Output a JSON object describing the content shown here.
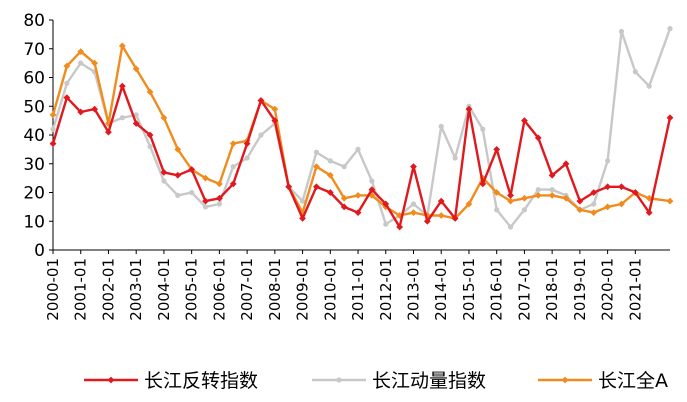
{
  "chart_data": {
    "type": "line",
    "title": "",
    "xlabel": "",
    "ylabel": "",
    "ylim": [
      0,
      80
    ],
    "yticks": [
      0,
      10,
      20,
      30,
      40,
      50,
      60,
      70,
      80
    ],
    "grid": false,
    "legend_position": "bottom",
    "x_tick_labels": [
      "2000-01",
      "2001-01",
      "2002-01",
      "2003-01",
      "2004-01",
      "2005-01",
      "2006-01",
      "2007-01",
      "2008-01",
      "2009-01",
      "2010-01",
      "2011-01",
      "2012-01",
      "2013-01",
      "2014-01",
      "2015-01",
      "2016-01",
      "2017-01",
      "2018-01",
      "2019-01",
      "2020-01",
      "2021-01"
    ],
    "x_start": 2000.0,
    "x_end": 2022.25,
    "series": [
      {
        "name": "长江动量指数",
        "color": "#c8c8c8",
        "marker": "circle",
        "points": [
          [
            2000.0,
            42
          ],
          [
            2000.5,
            58
          ],
          [
            2001.0,
            65
          ],
          [
            2001.5,
            62
          ],
          [
            2002.0,
            44
          ],
          [
            2002.5,
            46
          ],
          [
            2003.0,
            47
          ],
          [
            2003.5,
            36
          ],
          [
            2004.0,
            24
          ],
          [
            2004.5,
            19
          ],
          [
            2005.0,
            20
          ],
          [
            2005.5,
            15
          ],
          [
            2006.0,
            16
          ],
          [
            2006.5,
            29
          ],
          [
            2007.0,
            32
          ],
          [
            2007.5,
            40
          ],
          [
            2008.0,
            44
          ],
          [
            2008.5,
            22
          ],
          [
            2009.0,
            17
          ],
          [
            2009.5,
            34
          ],
          [
            2010.0,
            31
          ],
          [
            2010.5,
            29
          ],
          [
            2011.0,
            35
          ],
          [
            2011.5,
            24
          ],
          [
            2012.0,
            9
          ],
          [
            2012.5,
            12
          ],
          [
            2013.0,
            16
          ],
          [
            2013.5,
            12
          ],
          [
            2014.0,
            43
          ],
          [
            2014.5,
            32
          ],
          [
            2015.0,
            50
          ],
          [
            2015.5,
            42
          ],
          [
            2016.0,
            14
          ],
          [
            2016.5,
            8
          ],
          [
            2017.0,
            14
          ],
          [
            2017.5,
            21
          ],
          [
            2018.0,
            21
          ],
          [
            2018.5,
            19
          ],
          [
            2019.0,
            14
          ],
          [
            2019.5,
            16
          ],
          [
            2020.0,
            31
          ],
          [
            2020.5,
            76
          ],
          [
            2021.0,
            62
          ],
          [
            2021.5,
            57
          ],
          [
            2022.25,
            77
          ]
        ]
      },
      {
        "name": "长江全A",
        "color": "#f08c1e",
        "marker": "diamond",
        "points": [
          [
            2000.0,
            47
          ],
          [
            2000.5,
            64
          ],
          [
            2001.0,
            69
          ],
          [
            2001.5,
            65
          ],
          [
            2002.0,
            44
          ],
          [
            2002.5,
            71
          ],
          [
            2003.0,
            63
          ],
          [
            2003.5,
            55
          ],
          [
            2004.0,
            46
          ],
          [
            2004.5,
            35
          ],
          [
            2005.0,
            28
          ],
          [
            2005.5,
            25
          ],
          [
            2006.0,
            23
          ],
          [
            2006.5,
            37
          ],
          [
            2007.0,
            38
          ],
          [
            2007.5,
            52
          ],
          [
            2008.0,
            49
          ],
          [
            2008.5,
            22
          ],
          [
            2009.0,
            13
          ],
          [
            2009.5,
            29
          ],
          [
            2010.0,
            26
          ],
          [
            2010.5,
            18
          ],
          [
            2011.0,
            19
          ],
          [
            2011.5,
            19
          ],
          [
            2012.0,
            15
          ],
          [
            2012.5,
            12
          ],
          [
            2013.0,
            13
          ],
          [
            2013.5,
            12
          ],
          [
            2014.0,
            12
          ],
          [
            2014.5,
            11
          ],
          [
            2015.0,
            16
          ],
          [
            2015.5,
            25
          ],
          [
            2016.0,
            20
          ],
          [
            2016.5,
            17
          ],
          [
            2017.0,
            18
          ],
          [
            2017.5,
            19
          ],
          [
            2018.0,
            19
          ],
          [
            2018.5,
            18
          ],
          [
            2019.0,
            14
          ],
          [
            2019.5,
            13
          ],
          [
            2020.0,
            15
          ],
          [
            2020.5,
            16
          ],
          [
            2021.0,
            20
          ],
          [
            2021.5,
            18
          ],
          [
            2022.25,
            17
          ]
        ]
      },
      {
        "name": "长江反转指数",
        "color": "#e0191e",
        "marker": "diamond",
        "points": [
          [
            2000.0,
            37
          ],
          [
            2000.5,
            53
          ],
          [
            2001.0,
            48
          ],
          [
            2001.5,
            49
          ],
          [
            2002.0,
            41
          ],
          [
            2002.5,
            57
          ],
          [
            2003.0,
            44
          ],
          [
            2003.5,
            40
          ],
          [
            2004.0,
            27
          ],
          [
            2004.5,
            26
          ],
          [
            2005.0,
            28
          ],
          [
            2005.5,
            17
          ],
          [
            2006.0,
            18
          ],
          [
            2006.5,
            23
          ],
          [
            2007.0,
            37
          ],
          [
            2007.5,
            52
          ],
          [
            2008.0,
            45
          ],
          [
            2008.5,
            22
          ],
          [
            2009.0,
            11
          ],
          [
            2009.5,
            22
          ],
          [
            2010.0,
            20
          ],
          [
            2010.5,
            15
          ],
          [
            2011.0,
            13
          ],
          [
            2011.5,
            21
          ],
          [
            2012.0,
            16
          ],
          [
            2012.5,
            8
          ],
          [
            2013.0,
            29
          ],
          [
            2013.5,
            10
          ],
          [
            2014.0,
            17
          ],
          [
            2014.5,
            11
          ],
          [
            2015.0,
            49
          ],
          [
            2015.5,
            23
          ],
          [
            2016.0,
            35
          ],
          [
            2016.5,
            19
          ],
          [
            2017.0,
            45
          ],
          [
            2017.5,
            39
          ],
          [
            2018.0,
            26
          ],
          [
            2018.5,
            30
          ],
          [
            2019.0,
            17
          ],
          [
            2019.5,
            20
          ],
          [
            2020.0,
            22
          ],
          [
            2020.5,
            22
          ],
          [
            2021.0,
            20
          ],
          [
            2021.5,
            13
          ],
          [
            2022.25,
            46
          ]
        ]
      }
    ],
    "legend": [
      {
        "name": "长江反转指数",
        "color": "#e0191e",
        "marker": "diamond"
      },
      {
        "name": "长江动量指数",
        "color": "#c8c8c8",
        "marker": "circle"
      },
      {
        "name": "长江全A",
        "color": "#f08c1e",
        "marker": "diamond"
      }
    ]
  }
}
